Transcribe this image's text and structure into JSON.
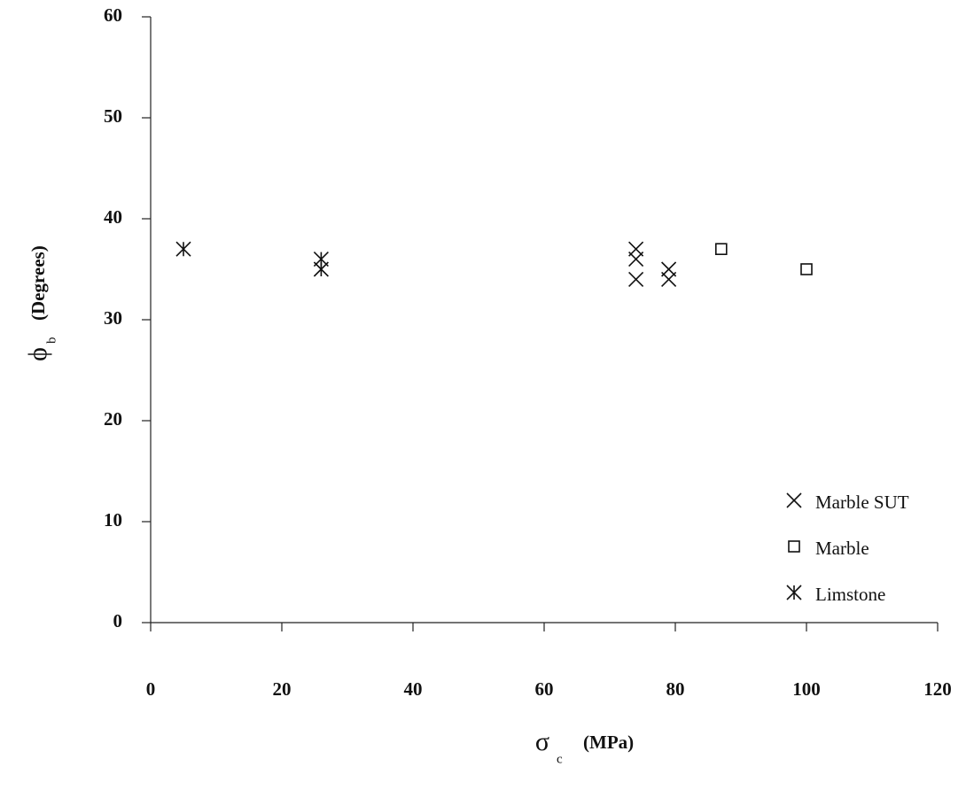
{
  "chart_data": {
    "type": "scatter",
    "x_label_symbol": "σ",
    "x_label_subscript": "c",
    "x_label_unit": "(MPa)",
    "y_label_symbol": "ϕ",
    "y_label_subscript": "b",
    "y_label_unit": "(Degrees)",
    "xlim": [
      0,
      120
    ],
    "xticks": [
      0,
      20,
      40,
      60,
      80,
      100,
      120
    ],
    "ylim": [
      0,
      60
    ],
    "yticks": [
      0,
      10,
      20,
      30,
      40,
      50,
      60
    ],
    "legend": "lower right",
    "series": [
      {
        "name": "Marble SUT",
        "marker": "x",
        "color": "#111111",
        "x": [
          74,
          74,
          74,
          79,
          79
        ],
        "values": [
          37,
          36,
          34,
          35,
          34
        ]
      },
      {
        "name": "Marble",
        "marker": "square",
        "color": "#111111",
        "x": [
          87,
          100
        ],
        "values": [
          37,
          35
        ]
      },
      {
        "name": "Limstone",
        "marker": "asterisk",
        "color": "#111111",
        "x": [
          5,
          26,
          26
        ],
        "values": [
          37,
          36,
          35
        ]
      }
    ]
  }
}
